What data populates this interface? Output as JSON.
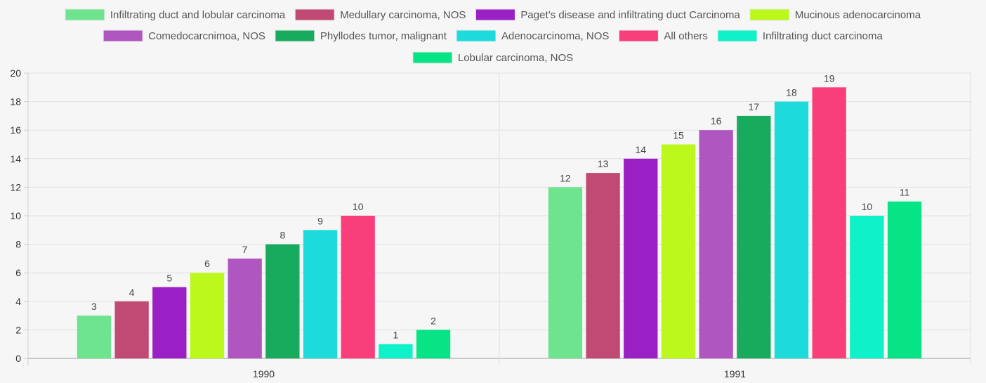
{
  "chart_data": {
    "type": "bar",
    "categories": [
      "1990",
      "1991"
    ],
    "series": [
      {
        "name": "Infiltrating duct and lobular carcinoma",
        "color": "#6ee48f",
        "values": [
          3,
          12
        ]
      },
      {
        "name": "Medullary carcinoma, NOS",
        "color": "#c04a74",
        "values": [
          4,
          13
        ]
      },
      {
        "name": "Paget’s disease and infiltrating duct Carcinoma",
        "color": "#9a1fc4",
        "values": [
          5,
          14
        ]
      },
      {
        "name": "Mucinous adenocarcinoma",
        "color": "#bdf81c",
        "values": [
          6,
          15
        ]
      },
      {
        "name": "Comedocarcnimoa, NOS",
        "color": "#b056c0",
        "values": [
          7,
          16
        ]
      },
      {
        "name": "Phyllodes tumor, malignant",
        "color": "#19ab5d",
        "values": [
          8,
          17
        ]
      },
      {
        "name": "Adenocarcinoma, NOS",
        "color": "#1ddbdb",
        "values": [
          9,
          18
        ]
      },
      {
        "name": "All others",
        "color": "#f93f7b",
        "values": [
          10,
          19
        ]
      },
      {
        "name": "Infiltrating duct carcinoma",
        "color": "#0ef1c9",
        "values": [
          1,
          10
        ]
      },
      {
        "name": "Lobular carcinoma, NOS",
        "color": "#07e486",
        "values": [
          2,
          11
        ]
      }
    ],
    "yticks": [
      0,
      2,
      4,
      6,
      8,
      10,
      12,
      14,
      16,
      18,
      20
    ],
    "ylim": [
      0,
      20
    ],
    "grid": true,
    "legend": "top",
    "data_labels": true
  }
}
